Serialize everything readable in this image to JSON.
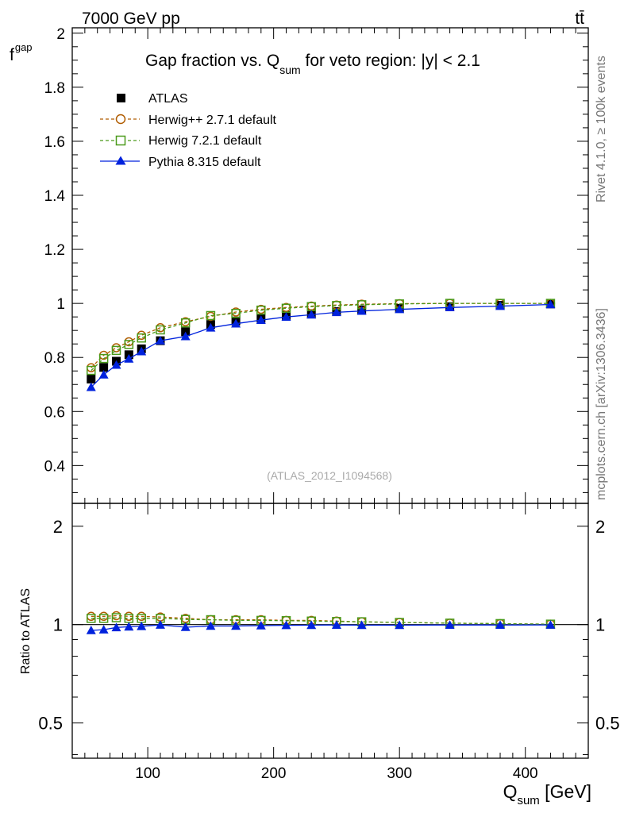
{
  "header": {
    "energy_label": "7000 GeV pp",
    "process_label": "tt̄",
    "side_label_rivet": "Rivet 4.1.0, ≥ 100k events",
    "side_label_mcplots": "mcplots.cern.ch [arXiv:1306.3436]"
  },
  "chart_data": {
    "type": "line",
    "title_prefix": "Gap fraction vs. Q",
    "title_sub": "sum",
    "title_suffix": " for veto region: |y| < 2.1",
    "ylabel_main": "f",
    "ylabel_main_sub": "gap",
    "ylabel_ratio": "Ratio to ATLAS",
    "xlabel": "Q",
    "xlabel_sub": "sum",
    "xlabel_unit": " [GeV]",
    "watermark": "(ATLAS_2012_I1094568)",
    "xlim": [
      40,
      450
    ],
    "ylim_main": [
      0.26,
      2.02
    ],
    "ylim_ratio": [
      0.39,
      2.35
    ],
    "xticks": [
      100,
      200,
      300,
      400
    ],
    "xtick_labels": [
      "100",
      "200",
      "300",
      "400"
    ],
    "yticks_main": [
      0.4,
      0.6,
      0.8,
      1.0,
      1.2,
      1.4,
      1.6,
      1.8,
      2.0
    ],
    "ytick_labels_main": [
      "0.4",
      "0.6",
      "0.8",
      "1",
      "1.2",
      "1.4",
      "1.6",
      "1.8",
      "2"
    ],
    "yticks_ratio": [
      0.5,
      1,
      2
    ],
    "ytick_labels_ratio": [
      "0.5",
      "1",
      "2"
    ],
    "x": [
      55,
      65,
      75,
      85,
      95,
      110,
      130,
      150,
      170,
      190,
      210,
      230,
      250,
      270,
      300,
      340,
      380,
      420
    ],
    "series": [
      {
        "name": "ATLAS",
        "color": "#000000",
        "marker": "square-filled",
        "values": [
          0.72,
          0.763,
          0.786,
          0.81,
          0.832,
          0.862,
          0.895,
          0.922,
          0.935,
          0.945,
          0.955,
          0.962,
          0.97,
          0.976,
          0.982,
          0.988,
          0.993,
          0.998
        ],
        "ratio": [
          1,
          1,
          1,
          1,
          1,
          1,
          1,
          1,
          1,
          1,
          1,
          1,
          1,
          1,
          1,
          1,
          1,
          1
        ]
      },
      {
        "name": "Herwig++ 2.7.1 default",
        "color": "#b05c00",
        "marker": "circle-open",
        "values": [
          0.762,
          0.808,
          0.836,
          0.858,
          0.882,
          0.91,
          0.932,
          0.952,
          0.968,
          0.978,
          0.985,
          0.99,
          0.994,
          0.997,
          0.999,
          1.0,
          1.0,
          1.0
        ],
        "ratio": [
          1.06,
          1.06,
          1.065,
          1.06,
          1.06,
          1.055,
          1.045,
          1.035,
          1.035,
          1.035,
          1.03,
          1.03,
          1.025,
          1.02,
          1.015,
          1.01,
          1.007,
          1.003
        ]
      },
      {
        "name": "Herwig 7.2.1 default",
        "color": "#4a9a1a",
        "marker": "square-open",
        "values": [
          0.752,
          0.796,
          0.826,
          0.848,
          0.872,
          0.902,
          0.928,
          0.955,
          0.963,
          0.975,
          0.982,
          0.988,
          0.992,
          0.995,
          0.998,
          1.0,
          1.0,
          1.0
        ],
        "ratio": [
          1.045,
          1.045,
          1.05,
          1.045,
          1.045,
          1.045,
          1.037,
          1.035,
          1.03,
          1.03,
          1.028,
          1.025,
          1.022,
          1.02,
          1.015,
          1.01,
          1.007,
          1.003
        ]
      },
      {
        "name": "Pythia 8.315 default",
        "color": "#0022dd",
        "marker": "triangle-filled",
        "values": [
          0.69,
          0.736,
          0.772,
          0.795,
          0.822,
          0.862,
          0.878,
          0.91,
          0.925,
          0.938,
          0.95,
          0.958,
          0.967,
          0.972,
          0.978,
          0.985,
          0.99,
          0.996
        ],
        "ratio": [
          0.96,
          0.965,
          0.98,
          0.985,
          0.988,
          0.998,
          0.982,
          0.99,
          0.99,
          0.993,
          0.995,
          0.996,
          0.997,
          0.996,
          0.996,
          0.997,
          0.997,
          0.998
        ]
      }
    ]
  }
}
